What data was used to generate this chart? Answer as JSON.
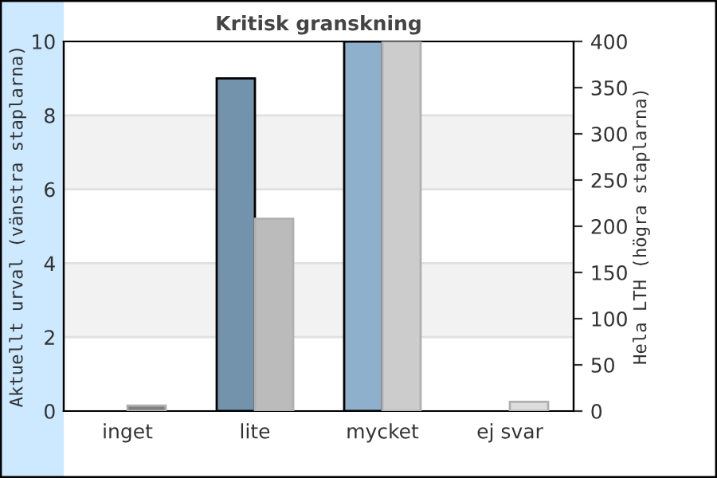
{
  "chart_data": {
    "type": "bar",
    "title": "Kritisk granskning",
    "categories": [
      "inget",
      "lite",
      "mycket",
      "ej svar"
    ],
    "ylabel": "Aktuellt urval (vänstra staplarna)",
    "y2label": "Hela LTH (högra staplarna)",
    "series": [
      {
        "colors": [
          "#7393ad",
          "#7393ad",
          "#8fb0cc",
          "#8fb0cc"
        ],
        "values": [
          0,
          9,
          10,
          0
        ]
      },
      {
        "axis": "y2",
        "colors": [
          "#808080",
          "#bbbbbb",
          "#cccccc",
          "#dddddd"
        ],
        "values": [
          6,
          208,
          400,
          10
        ]
      }
    ],
    "ylim": [
      0,
      10
    ],
    "yticks": [
      0,
      2,
      4,
      6,
      8,
      10
    ],
    "y2lim": [
      0,
      400
    ],
    "y2ticks": [
      0,
      50,
      100,
      150,
      200,
      250,
      300,
      350,
      400
    ],
    "bands": [
      {
        "axis": "y",
        "from": 2,
        "to": 4,
        "color": "#f2f2f2"
      },
      {
        "axis": "y",
        "from": 6,
        "to": 8,
        "color": "#f2f2f2"
      }
    ],
    "grid": "y"
  }
}
